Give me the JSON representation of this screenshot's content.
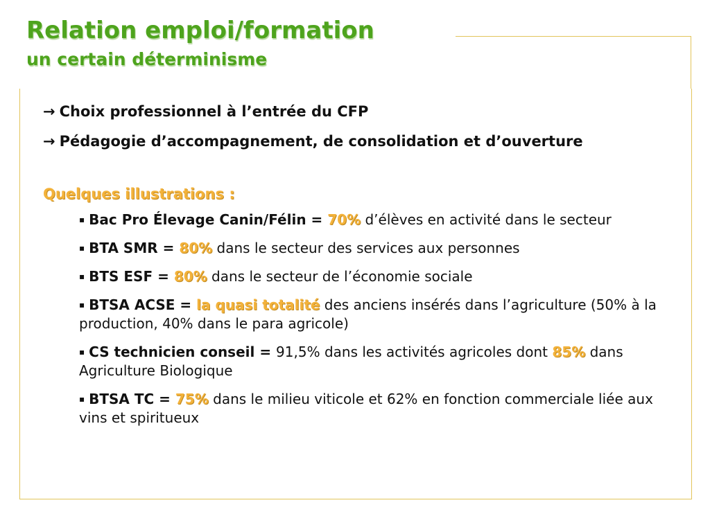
{
  "title": "Relation emploi/formation",
  "subtitle": "un certain déterminisme",
  "arrow_glyph": "→",
  "bullet_glyph": "▪",
  "points": [
    "Choix professionnel à l’entrée du CFP",
    "Pédagogie d’accompagnement, de consolidation et d’ouverture"
  ],
  "illustrations_heading": "Quelques illustrations :",
  "illustrations": [
    {
      "label": "Bac Pro Élevage Canin/Félin = ",
      "highlight": "70%",
      "mid": "",
      "highlight2": "",
      "text": " d’élèves en activité dans le secteur"
    },
    {
      "label": "BTA SMR = ",
      "highlight": "80%",
      "mid": "",
      "highlight2": "",
      "text": " dans le secteur des services aux personnes"
    },
    {
      "label": "BTS ESF = ",
      "highlight": "80%",
      "mid": "",
      "highlight2": "",
      "text": " dans le secteur de l’économie sociale"
    },
    {
      "label": "BTSA ACSE = ",
      "highlight": "la quasi totalité",
      "mid": "",
      "highlight2": "",
      "text": " des anciens insérés dans l’agriculture (50% à la production, 40% dans le para agricole)"
    },
    {
      "label": "CS technicien conseil = ",
      "highlight": "",
      "mid": "91,5% dans les activités agricoles dont ",
      "highlight2": "85%",
      "text": " dans Agriculture Biologique"
    },
    {
      "label": "BTSA TC = ",
      "highlight": "75%",
      "mid": "",
      "highlight2": "",
      "text": " dans le milieu viticole et 62% en fonction commerciale liée aux vins et spiritueux"
    }
  ],
  "colors": {
    "title": "#4ea41d",
    "highlight": "#f3b23a",
    "frame": "#e2c45a"
  }
}
